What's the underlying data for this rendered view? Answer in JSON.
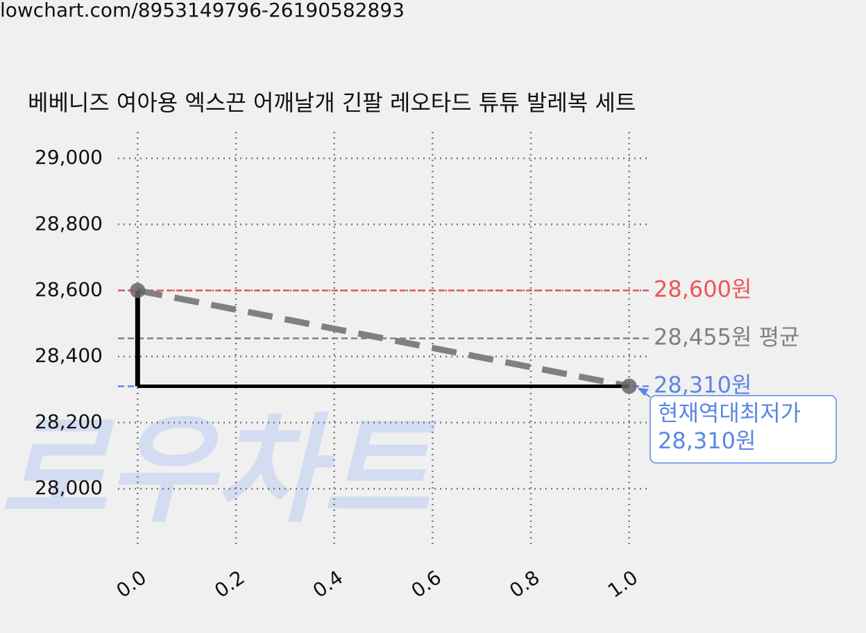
{
  "url": "lowchart.com/8953149796-26190582893",
  "chart_data": {
    "type": "step",
    "title": "베베니즈 여아용 엑스끈 어깨날개 긴팔 레오타드 튜튜 발레복 세트",
    "watermark": "로우차트",
    "x": [
      0,
      1
    ],
    "series": [
      {
        "color": "#000000",
        "values": [
          28600,
          28310
        ]
      }
    ],
    "trend_color": "#808080",
    "marker_color": "#666666",
    "xlim": [
      -0.04,
      1.04
    ],
    "ylim": [
      27830,
      29080
    ],
    "xticks": [
      {
        "value": 0,
        "label": "0.0"
      },
      {
        "value": 0.2,
        "label": "0.2"
      },
      {
        "value": 0.4,
        "label": "0.4"
      },
      {
        "value": 0.6,
        "label": "0.6"
      },
      {
        "value": 0.8,
        "label": "0.8"
      },
      {
        "value": 1,
        "label": "1.0"
      }
    ],
    "yticks": [
      {
        "value": 28000,
        "label": "28,000"
      },
      {
        "value": 28200,
        "label": "28,200"
      },
      {
        "value": 28400,
        "label": "28,400"
      },
      {
        "value": 28600,
        "label": "28,600"
      },
      {
        "value": 28800,
        "label": "28,800"
      },
      {
        "value": 29000,
        "label": "29,000"
      }
    ],
    "grid": true,
    "reference_lines": [
      {
        "value": 28600,
        "label": "28,600원",
        "color": "#ee5555"
      },
      {
        "value": 28455,
        "label": "28,455원 평균",
        "color": "#808080"
      },
      {
        "value": 28310,
        "label": "28,310원",
        "color": "#5b86e5"
      }
    ],
    "annotation": {
      "lines": [
        "현재역대최저가",
        "28,310원"
      ],
      "color": "#5b86e5"
    }
  }
}
